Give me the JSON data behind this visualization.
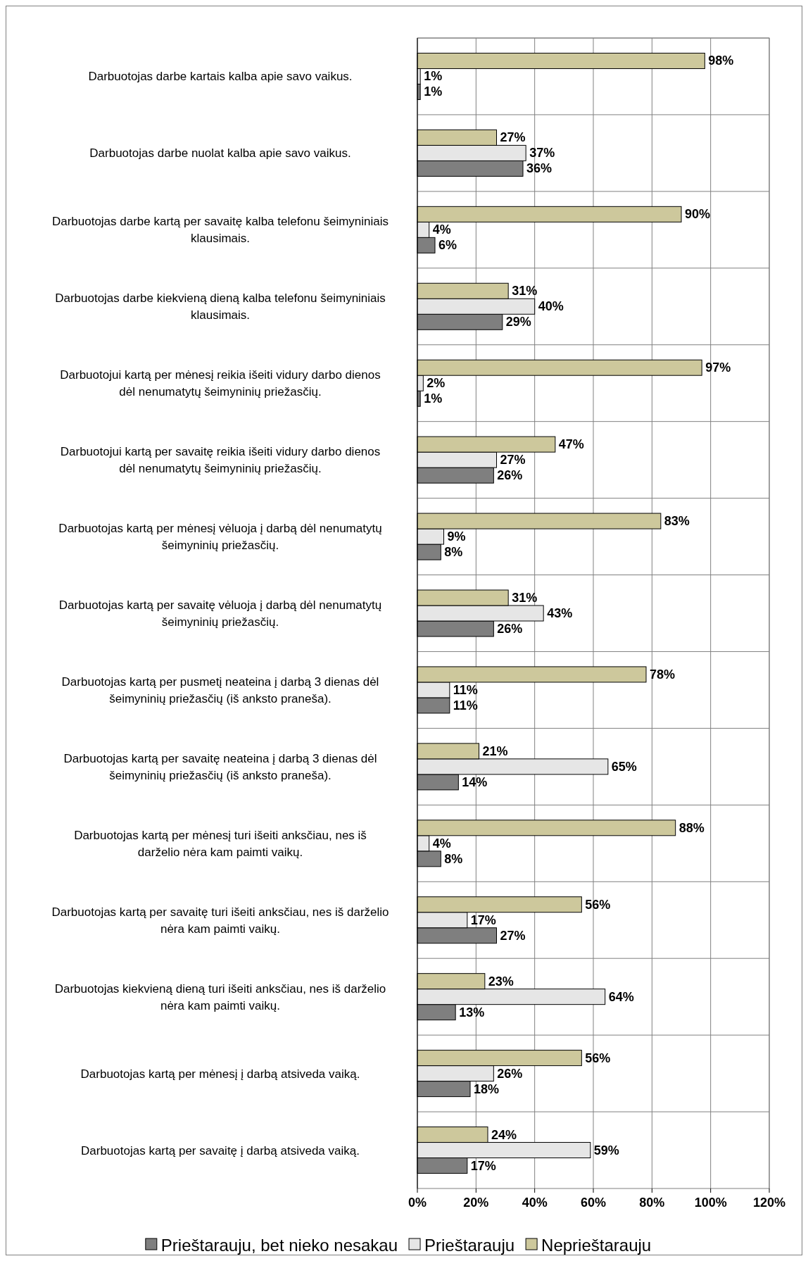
{
  "chart_data": {
    "type": "bar",
    "orientation": "horizontal",
    "categories": [
      "Darbuotojas darbe kartais kalba apie savo vaikus.",
      "Darbuotojas darbe nuolat kalba apie savo vaikus.",
      "Darbuotojas darbe kartą per savaitę kalba telefonu šeimyniniais klausimais.",
      "Darbuotojas darbe kiekvieną dieną kalba telefonu šeimyniniais klausimais.",
      "Darbuotojui kartą per mėnesį reikia išeiti vidury darbo dienos dėl nenumatytų šeimyninių priežasčių.",
      "Darbuotojui kartą per savaitę reikia išeiti vidury darbo dienos dėl nenumatytų šeimyninių priežasčių.",
      "Darbuotojas kartą per mėnesį vėluoja į darbą dėl nenumatytų šeimyninių priežasčių.",
      "Darbuotojas kartą per savaitę vėluoja į darbą dėl nenumatytų šeimyninių priežasčių.",
      "Darbuotojas kartą per pusmetį neateina į darbą 3 dienas dėl šeimyninių priežasčių (iš anksto praneša).",
      "Darbuotojas kartą per savaitę neateina į darbą 3 dienas dėl šeimyninių priežasčių (iš anksto praneša).",
      "Darbuotojas kartą per mėnesį turi išeiti anksčiau, nes iš darželio nėra kam paimti vaikų.",
      "Darbuotojas kartą per savaitę turi išeiti anksčiau, nes iš darželio nėra kam paimti vaikų.",
      "Darbuotojas kiekvieną dieną turi išeiti anksčiau, nes iš darželio nėra kam paimti vaikų.",
      "Darbuotojas kartą per mėnesį į darbą atsiveda vaiką.",
      "Darbuotojas kartą per savaitę į darbą atsiveda vaiką."
    ],
    "series": [
      {
        "name": "Prieštarauju, bet nieko nesakau",
        "color": "#7f7f7f",
        "values": [
          1,
          36,
          6,
          29,
          1,
          26,
          8,
          26,
          11,
          14,
          8,
          27,
          13,
          18,
          17
        ],
        "value_labels": [
          "1%",
          "36%",
          "6%",
          "29%",
          "1%",
          "26%",
          "8%",
          "26%",
          "11%",
          "14%",
          "8%",
          "27%",
          "13%",
          "18%",
          "17%"
        ]
      },
      {
        "name": "Prieštarauju",
        "color": "#e6e6e6",
        "values": [
          1,
          37,
          4,
          40,
          2,
          27,
          9,
          43,
          11,
          65,
          4,
          17,
          64,
          26,
          59
        ],
        "value_labels": [
          "1%",
          "37%",
          "4%",
          "40%",
          "2%",
          "27%",
          "9%",
          "43%",
          "11%",
          "65%",
          "4%",
          "17%",
          "64%",
          "26%",
          "59%"
        ]
      },
      {
        "name": "Neprieštarauju",
        "color": "#cdc89c",
        "values": [
          98,
          27,
          90,
          31,
          97,
          47,
          83,
          31,
          78,
          21,
          88,
          56,
          23,
          56,
          24
        ],
        "value_labels": [
          "98%",
          "27%",
          "90%",
          "31%",
          "97%",
          "47%",
          "83%",
          "31%",
          "78%",
          "21%",
          "88%",
          "56%",
          "23%",
          "56%",
          "24%"
        ]
      }
    ],
    "xlim": [
      0,
      120
    ],
    "xticks": [
      {
        "value": 0,
        "label": "0%"
      },
      {
        "value": 20,
        "label": "20%"
      },
      {
        "value": 40,
        "label": "40%"
      },
      {
        "value": 60,
        "label": "60%"
      },
      {
        "value": 80,
        "label": "80%"
      },
      {
        "value": 100,
        "label": "100%"
      },
      {
        "value": 120,
        "label": "120%"
      }
    ],
    "grid": true,
    "legend": "bottom"
  }
}
